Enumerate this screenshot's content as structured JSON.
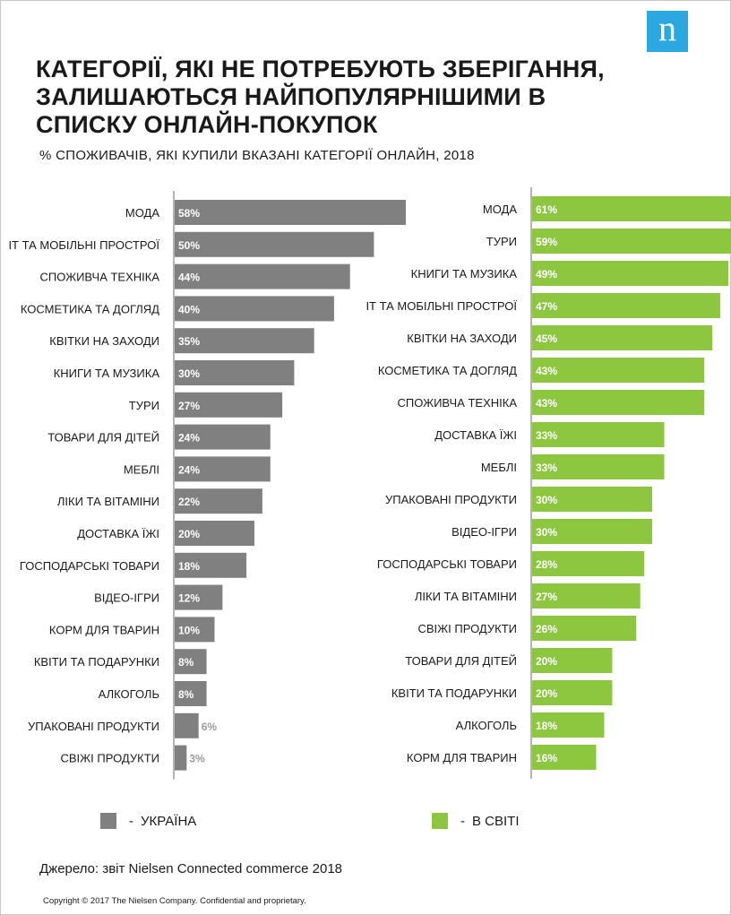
{
  "header": {
    "logo_text": "n",
    "title_lines": [
      "КАТЕГОРІЇ, ЯКІ НЕ ПОТРЕБУЮТЬ ЗБЕРІГАННЯ,",
      "ЗАЛИШАЮТЬСЯ НАЙПОПУЛЯРНІШИМИ В",
      "СПИСКУ ОНЛАЙН-ПОКУПОК"
    ],
    "subtitle": "% СПОЖИВАЧІВ,  ЯКІ КУПИЛИ ВКАЗАНІ КАТЕГОРІЇ  ОНЛАЙН, 2018"
  },
  "colors": {
    "ukraine": "#808080",
    "world": "#8dc63f",
    "logo": "#2aa8e0"
  },
  "legend": [
    {
      "dash": "-",
      "label": "УКРАЇНА",
      "color": "#808080"
    },
    {
      "dash": "-",
      "label": "В СВІТІ",
      "color": "#8dc63f"
    }
  ],
  "chart_data": [
    {
      "type": "bar",
      "orientation": "horizontal",
      "series": [
        {
          "name": "УКРАЇНА",
          "color": "#808080"
        }
      ],
      "categories": [
        "МОДА",
        "ІТ ТА МОБІЛЬНІ ПРОСТРОЇ",
        "СПОЖИВЧА ТЕХНІКА",
        "КОСМЕТИКА ТА ДОГЛЯД",
        "КВІТКИ НА ЗАХОДИ",
        "КНИГИ ТА МУЗИКА",
        "ТУРИ",
        "ТОВАРИ ДЛЯ ДІТЕЙ",
        "МЕБЛІ",
        "ЛІКИ ТА ВІТАМІНИ",
        "ДОСТАВКА ЇЖІ",
        "ГОСПОДАРСЬКІ ТОВАРИ",
        "ВІДЕО-ІГРИ",
        "КОРМ ДЛЯ ТВАРИН",
        "КВІТИ ТА ПОДАРУНКИ",
        "АЛКОГОЛЬ",
        "УПАКОВАНІ ПРОДУКТИ",
        "СВІЖІ ПРОДУКТИ"
      ],
      "values": [
        58,
        50,
        44,
        40,
        35,
        30,
        27,
        24,
        24,
        22,
        20,
        18,
        12,
        10,
        8,
        8,
        6,
        3
      ],
      "value_labels": [
        "58%",
        "50%",
        "44%",
        "40%",
        "35%",
        "30%",
        "27%",
        "24%",
        "24%",
        "22%",
        "20%",
        "18%",
        "12%",
        "10%",
        "8%",
        "8%",
        "6%",
        "3%"
      ],
      "xlim": [
        0,
        60
      ]
    },
    {
      "type": "bar",
      "orientation": "horizontal",
      "series": [
        {
          "name": "В СВІТІ",
          "color": "#8dc63f"
        }
      ],
      "categories": [
        "МОДА",
        "ТУРИ",
        "КНИГИ ТА МУЗИКА",
        "ІТ ТА МОБІЛЬНІ ПРОСТРОЇ",
        "КВІТКИ НА ЗАХОДИ",
        "КОСМЕТИКА ТА ДОГЛЯД",
        "СПОЖИВЧА ТЕХНІКА",
        "ДОСТАВКА ЇЖІ",
        "МЕБЛІ",
        "УПАКОВАНІ ПРОДУКТИ",
        "ВІДЕО-ІГРИ",
        "ГОСПОДАРСЬКІ ТОВАРИ",
        "ЛІКИ ТА ВІТАМІНИ",
        "СВІЖІ ПРОДУКТИ",
        "ТОВАРИ ДЛЯ ДІТЕЙ",
        "КВІТИ ТА ПОДАРУНКИ",
        "АЛКОГОЛЬ",
        "КОРМ ДЛЯ ТВАРИН"
      ],
      "values": [
        61,
        59,
        49,
        47,
        45,
        43,
        43,
        33,
        33,
        30,
        30,
        28,
        27,
        26,
        20,
        20,
        18,
        16
      ],
      "value_labels": [
        "61%",
        "59%",
        "49%",
        "47%",
        "45%",
        "43%",
        "43%",
        "33%",
        "33%",
        "30%",
        "30%",
        "28%",
        "27%",
        "26%",
        "20%",
        "20%",
        "18%",
        "16%"
      ],
      "xlim": [
        0,
        60
      ]
    }
  ],
  "footer": {
    "source": "Джерело: звіт Nielsen Connected commerce 2018",
    "copyright": "Copyright © 2017 The Nielsen Company. Confidential and proprietary."
  }
}
